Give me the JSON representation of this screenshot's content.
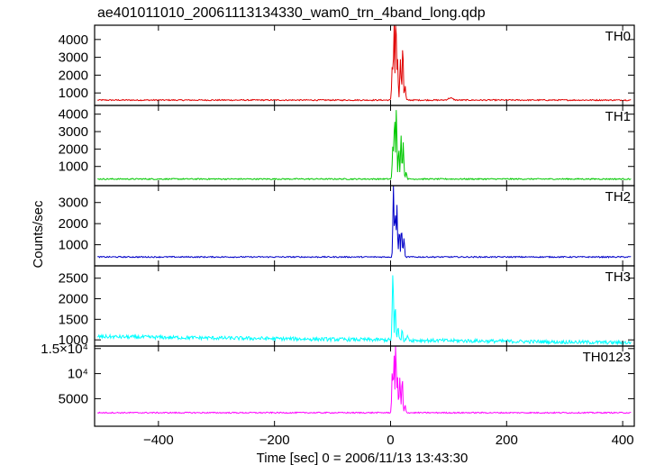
{
  "chart_data": {
    "type": "line",
    "title": "ae401011010_20061113134330_wam0_trn_4band_long.qdp",
    "xlabel": "Time [sec] 0 = 2006/11/13 13:43:30",
    "ylabel": "Counts/sec",
    "xlim": [
      -510,
      420
    ],
    "x_ticks": [
      -400,
      -200,
      0,
      200,
      400
    ],
    "x_tick_labels": [
      "−400",
      "−200",
      "0",
      "200",
      "400"
    ],
    "panels": [
      {
        "name": "TH0",
        "color": "#e00000",
        "ylim": [
          300,
          4800
        ],
        "yticks": [
          1000,
          2000,
          3000,
          4000
        ],
        "ytick_labels": [
          "1000",
          "2000",
          "3000",
          "4000"
        ],
        "baseline": 600,
        "noise": 35,
        "peaks": [
          [
            3,
            2100
          ],
          [
            6,
            3800
          ],
          [
            9,
            4400
          ],
          [
            12,
            2300
          ],
          [
            17,
            2600
          ],
          [
            21,
            2700
          ],
          [
            25,
            800
          ]
        ],
        "bump": [
          103,
          120
        ]
      },
      {
        "name": "TH1",
        "color": "#00c800",
        "ylim": [
          -100,
          4500
        ],
        "yticks": [
          1000,
          2000,
          3000,
          4000
        ],
        "ytick_labels": [
          "1000",
          "2000",
          "3000",
          "4000"
        ],
        "baseline": 280,
        "noise": 35,
        "peaks": [
          [
            4,
            2200
          ],
          [
            7,
            3900
          ],
          [
            10,
            3700
          ],
          [
            14,
            1800
          ],
          [
            18,
            2400
          ],
          [
            22,
            2000
          ],
          [
            27,
            400
          ]
        ],
        "bump": [
          0,
          0
        ]
      },
      {
        "name": "TH2",
        "color": "#0000c8",
        "ylim": [
          0,
          3800
        ],
        "yticks": [
          1000,
          2000,
          3000
        ],
        "ytick_labels": [
          "1000",
          "2000",
          "3000"
        ],
        "baseline": 420,
        "noise": 30,
        "peaks": [
          [
            5,
            3200
          ],
          [
            8,
            2100
          ],
          [
            11,
            2300
          ],
          [
            15,
            1200
          ],
          [
            19,
            1400
          ],
          [
            23,
            900
          ]
        ],
        "bump": [
          0,
          0
        ]
      },
      {
        "name": "TH3",
        "color": "#00ffff",
        "ylim": [
          850,
          2800
        ],
        "yticks": [
          1000,
          1500,
          2000,
          2500
        ],
        "ytick_labels": [
          "1000",
          "1500",
          "2000",
          "2500"
        ],
        "baseline_start": 1080,
        "baseline_end": 930,
        "noise": 45,
        "peaks": [
          [
            4,
            1600
          ],
          [
            8,
            800
          ],
          [
            13,
            350
          ],
          [
            20,
            250
          ],
          [
            30,
            120
          ]
        ],
        "bump": [
          0,
          0
        ]
      },
      {
        "name": "TH0123",
        "color": "#ff00ff",
        "ylim": [
          -500,
          15500
        ],
        "yticks": [
          5000,
          10000,
          15000
        ],
        "ytick_labels": [
          "5000",
          "10⁴",
          "1.5×10⁴"
        ],
        "baseline": 2200,
        "noise": 120,
        "peaks": [
          [
            3,
            7500
          ],
          [
            6,
            11500
          ],
          [
            9,
            12500
          ],
          [
            12,
            7000
          ],
          [
            16,
            6800
          ],
          [
            20,
            6600
          ],
          [
            25,
            1400
          ]
        ],
        "bump": [
          0,
          0
        ]
      }
    ]
  }
}
